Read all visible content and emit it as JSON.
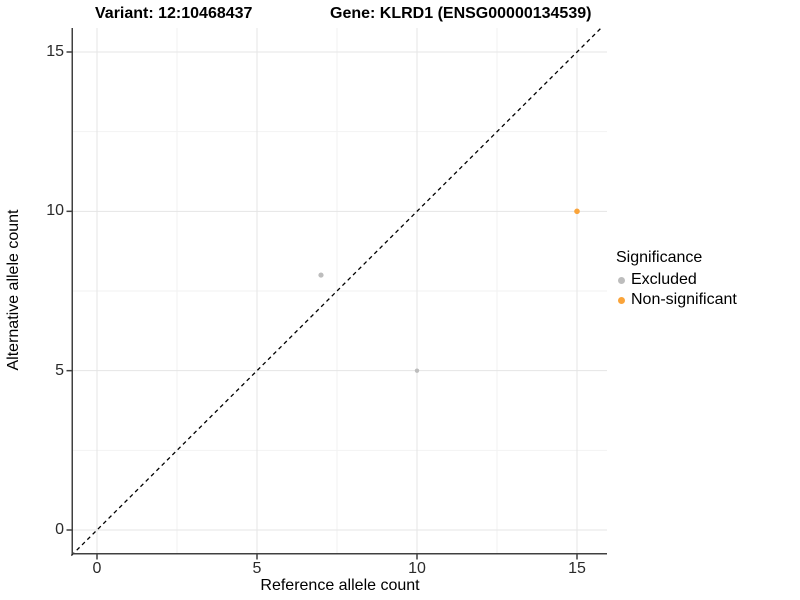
{
  "chart_data": {
    "type": "scatter",
    "titles": {
      "variant": "Variant: 12:10468437",
      "gene": "Gene: KLRD1 (ENSG00000134539)"
    },
    "xlabel": "Reference allele count",
    "ylabel": "Alternative allele count",
    "x_ticks": [
      0,
      5,
      10,
      15
    ],
    "y_ticks": [
      0,
      5,
      10,
      15
    ],
    "x_minor_ticks": [
      2.5,
      7.5,
      12.5
    ],
    "y_minor_ticks": [
      2.5,
      7.5,
      12.5
    ],
    "xlim": [
      -0.75,
      15.9
    ],
    "ylim": [
      -0.75,
      15.75
    ],
    "grid": true,
    "identity_line": {
      "style": "dashed",
      "slope": 1,
      "intercept": 0,
      "color": "#000000"
    },
    "legend": {
      "title": "Significance",
      "position": "right"
    },
    "series": [
      {
        "name": "Excluded",
        "color": "#BDBDBD",
        "points": [
          {
            "x": 7,
            "y": 8,
            "r": 2.6
          },
          {
            "x": 10,
            "y": 5,
            "r": 2.2
          }
        ]
      },
      {
        "name": "Non-significant",
        "color": "#FAA43A",
        "points": [
          {
            "x": 15,
            "y": 10,
            "r": 2.8
          }
        ]
      }
    ],
    "colors": {
      "grid_major": "#E5E5E5",
      "grid_minor": "#F2F2F2",
      "axis": "#404040"
    }
  }
}
